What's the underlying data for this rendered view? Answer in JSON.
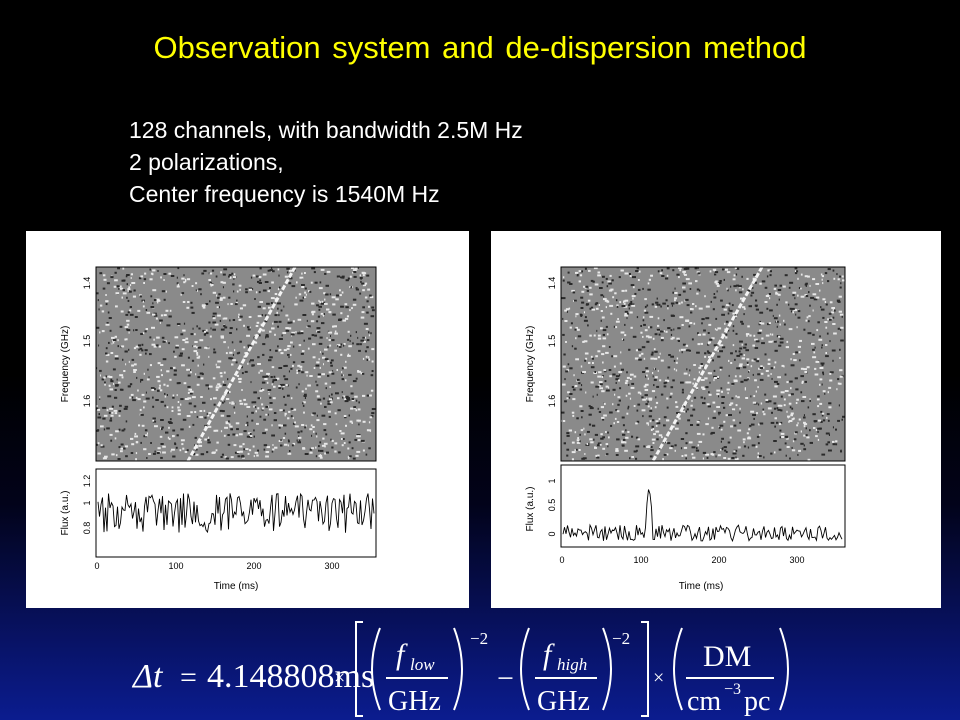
{
  "slide": {
    "title": "Observation system and de-dispersion method",
    "bullets": [
      "128 channels, with bandwidth 2.5M Hz",
      "2 polarizations,",
      "Center frequency is 1540M Hz"
    ]
  },
  "figures": [
    {
      "ylabel_top": "Frequency (GHz)",
      "ylabel_bottom": "Flux (a.u.)",
      "xlabel": "Time (ms)",
      "freq_ticks": [
        "1.4",
        "1.5",
        "1.6"
      ],
      "flux_ticks": [
        "0.8",
        "1",
        "1.2"
      ],
      "time_ticks": [
        "0",
        "100",
        "200",
        "300"
      ]
    },
    {
      "ylabel_top": "Frequency (GHz)",
      "ylabel_bottom": "Flux (a.u.)",
      "xlabel": "Time (ms)",
      "freq_ticks": [
        "1.4",
        "1.5",
        "1.6"
      ],
      "flux_ticks": [
        "0",
        "0.5",
        "1"
      ],
      "time_ticks": [
        "0",
        "100",
        "200",
        "300"
      ]
    }
  ],
  "formula": {
    "lhs": "Δt",
    "equals": "=",
    "coefficient": "4.148808ms",
    "times": "×",
    "f_low": "f",
    "low_sub": "low",
    "f_high": "f",
    "high_sub": "high",
    "unit": "GHz",
    "exponent": "−2",
    "minus": "−",
    "dm": "DM",
    "dm_unit_a": "cm",
    "dm_unit_exp": "−3",
    "dm_unit_b": "pc"
  }
}
